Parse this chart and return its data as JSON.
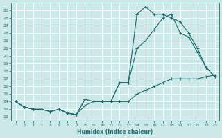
{
  "xlabel": "Humidex (Indice chaleur)",
  "background_color": "#cde8e8",
  "line_color": "#1a6b6b",
  "grid_color": "#ffffff",
  "xlim": [
    -0.5,
    23.5
  ],
  "ylim": [
    11.5,
    27
  ],
  "xticks": [
    0,
    1,
    2,
    3,
    4,
    5,
    6,
    7,
    8,
    9,
    10,
    11,
    12,
    13,
    14,
    15,
    16,
    17,
    18,
    19,
    20,
    21,
    22,
    23
  ],
  "yticks": [
    12,
    13,
    14,
    15,
    16,
    17,
    18,
    19,
    20,
    21,
    22,
    23,
    24,
    25,
    26
  ],
  "line1_x": [
    0,
    1,
    2,
    3,
    4,
    5,
    6,
    7,
    8,
    9,
    10,
    11,
    12,
    13,
    14,
    15,
    16,
    17,
    18,
    19,
    20,
    21,
    22,
    23
  ],
  "line1_y": [
    14,
    13.3,
    13,
    13,
    12.7,
    13,
    12.5,
    12.3,
    14.3,
    14,
    14,
    14,
    16.5,
    16.5,
    25.5,
    26.5,
    25.5,
    25.5,
    25,
    24.5,
    23,
    21,
    18.5,
    17.3
  ],
  "line2_x": [
    0,
    1,
    2,
    3,
    4,
    5,
    6,
    7,
    8,
    9,
    10,
    11,
    12,
    13,
    14,
    15,
    16,
    17,
    18,
    19,
    20,
    21,
    22,
    23
  ],
  "line2_y": [
    14,
    13.3,
    13,
    13,
    12.7,
    13,
    12.5,
    12.3,
    14.3,
    14,
    14,
    14,
    16.5,
    16.5,
    21,
    22,
    23.5,
    25,
    25.5,
    23,
    22.5,
    20.5,
    18.5,
    17.3
  ],
  "line3_x": [
    0,
    1,
    2,
    3,
    4,
    5,
    6,
    7,
    8,
    9,
    10,
    11,
    12,
    13,
    14,
    15,
    16,
    17,
    18,
    19,
    20,
    21,
    22,
    23
  ],
  "line3_y": [
    14,
    13.3,
    13,
    13,
    12.7,
    13,
    12.5,
    12.3,
    13.5,
    14,
    14,
    14,
    14,
    14,
    15,
    15.5,
    16,
    16.5,
    17,
    17,
    17,
    17,
    17.3,
    17.5
  ]
}
